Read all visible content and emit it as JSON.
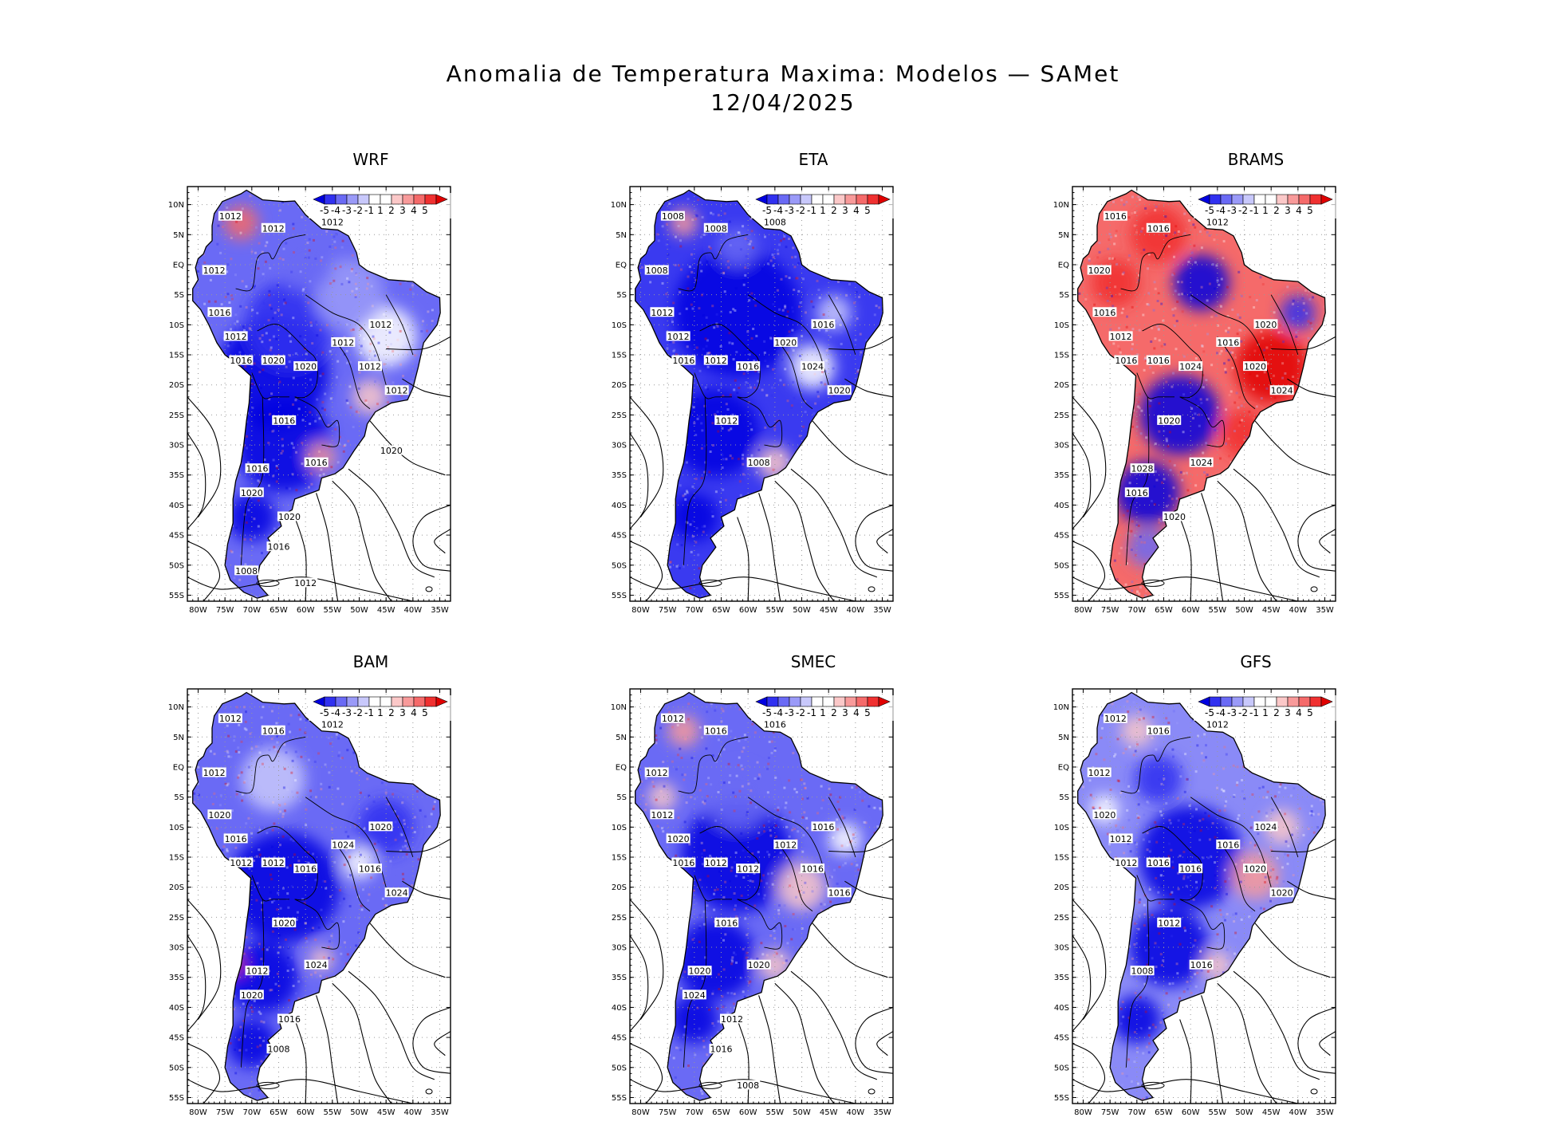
{
  "title": {
    "line1": "Anomalia de Temperatura Maxima: Modelos — SAMet",
    "line2": "12/04/2025"
  },
  "axes": {
    "lat_labels": [
      "10N",
      "5N",
      "EQ",
      "5S",
      "10S",
      "15S",
      "20S",
      "25S",
      "30S",
      "35S",
      "40S",
      "45S",
      "50S",
      "55S"
    ],
    "lon_labels": [
      "80W",
      "75W",
      "70W",
      "65W",
      "60W",
      "55W",
      "50W",
      "45W",
      "40W",
      "35W"
    ]
  },
  "colorbar": {
    "labels": [
      "-5",
      "-4",
      "-3",
      "-2",
      "-1",
      "1",
      "2",
      "3",
      "4",
      "5"
    ],
    "colors": [
      "#0000e0",
      "#3030f0",
      "#6a6af5",
      "#9a9af8",
      "#c8c8fb",
      "#ffffff",
      "#ffffff",
      "#fbc8c8",
      "#f89a9a",
      "#f56a6a",
      "#f03030",
      "#e00000"
    ]
  },
  "panels": [
    {
      "name": "WRF",
      "contours": [
        "1012",
        "1012",
        "1012",
        "1012",
        "1016",
        "1012",
        "1016",
        "1020",
        "1020",
        "1012",
        "1012",
        "1012",
        "1012",
        "1016",
        "1016",
        "1016",
        "1020",
        "1020",
        "1016",
        "1012",
        "1008",
        "1020"
      ]
    },
    {
      "name": "ETA",
      "contours": [
        "1008",
        "1008",
        "1008",
        "1008",
        "1012",
        "1012",
        "1016",
        "1012",
        "1016",
        "1020",
        "1024",
        "1016",
        "1020",
        "1012",
        "1008"
      ]
    },
    {
      "name": "BRAMS",
      "contours": [
        "1016",
        "1016",
        "1012",
        "1020",
        "1016",
        "1012",
        "1016",
        "1016",
        "1024",
        "1016",
        "1020",
        "1020",
        "1024",
        "1020",
        "1024",
        "1028",
        "1016",
        "1020"
      ]
    },
    {
      "name": "BAM",
      "contours": [
        "1012",
        "1016",
        "1012",
        "1012",
        "1020",
        "1016",
        "1012",
        "1012",
        "1016",
        "1024",
        "1016",
        "1020",
        "1024",
        "1020",
        "1024",
        "1012",
        "1020",
        "1016",
        "1008"
      ]
    },
    {
      "name": "SMEC",
      "contours": [
        "1012",
        "1016",
        "1016",
        "1012",
        "1012",
        "1020",
        "1016",
        "1012",
        "1012",
        "1012",
        "1016",
        "1016",
        "1016",
        "1016",
        "1020",
        "1020",
        "1024",
        "1012",
        "1016",
        "1008"
      ]
    },
    {
      "name": "GFS",
      "contours": [
        "1012",
        "1016",
        "1012",
        "1012",
        "1020",
        "1012",
        "1012",
        "1016",
        "1016",
        "1016",
        "1020",
        "1024",
        "1020",
        "1012",
        "1016",
        "1008"
      ]
    }
  ]
}
